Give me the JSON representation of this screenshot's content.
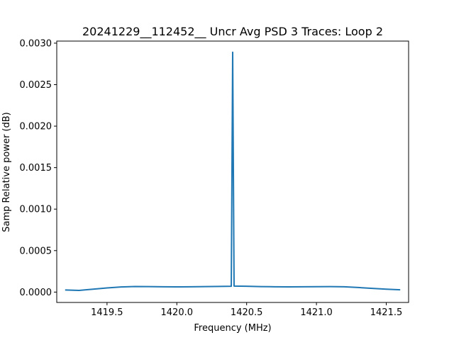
{
  "chart_data": {
    "type": "line",
    "title": "20241229__112452__  Uncr Avg PSD 3 Traces: Loop 2",
    "xlabel": "Frequency (MHz)",
    "ylabel": "Samp Relative power (dB)",
    "xlim": [
      1419.14,
      1421.66
    ],
    "ylim": [
      -0.000125,
      0.003025
    ],
    "xticks": [
      1419.5,
      1420.0,
      1420.5,
      1421.0,
      1421.5
    ],
    "xtick_labels": [
      "1419.5",
      "1420.0",
      "1420.5",
      "1421.0",
      "1421.5"
    ],
    "yticks": [
      0.0,
      0.0005,
      0.001,
      0.0015,
      0.002,
      0.0025,
      0.003
    ],
    "ytick_labels": [
      "0.0000",
      "0.0005",
      "0.0010",
      "0.0015",
      "0.0020",
      "0.0025",
      "0.0030"
    ],
    "grid": false,
    "line_color": "#1f77b4",
    "series": [
      {
        "name": "",
        "x": [
          1419.2,
          1419.3,
          1419.4,
          1419.5,
          1419.6,
          1419.7,
          1419.8,
          1419.9,
          1420.0,
          1420.1,
          1420.2,
          1420.3,
          1420.39,
          1420.4,
          1420.41,
          1420.5,
          1420.6,
          1420.7,
          1420.8,
          1420.9,
          1421.0,
          1421.1,
          1421.2,
          1421.3,
          1421.4,
          1421.5,
          1421.6
        ],
        "y": [
          2.5e-05,
          2e-05,
          3.5e-05,
          5e-05,
          6.2e-05,
          6.7e-05,
          6.6e-05,
          6.4e-05,
          6.3e-05,
          6.4e-05,
          6.6e-05,
          6.8e-05,
          7e-05,
          0.00289,
          7.2e-05,
          7e-05,
          6.6e-05,
          6.4e-05,
          6.3e-05,
          6.4e-05,
          6.5e-05,
          6.6e-05,
          6.4e-05,
          5.5e-05,
          4.5e-05,
          3.5e-05,
          2.8e-05
        ]
      }
    ]
  }
}
